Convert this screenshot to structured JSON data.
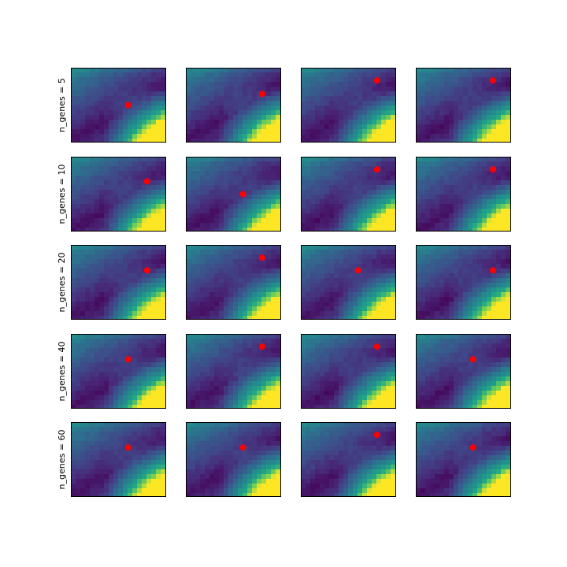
{
  "chart_data": {
    "type": "heatmap",
    "layout": {
      "rows": 5,
      "cols": 4
    },
    "row_labels": [
      "n_genes = 5",
      "n_genes = 10",
      "n_genes = 20",
      "n_genes = 40",
      "n_genes = 60"
    ],
    "axes": {
      "xticks": "none",
      "yticks": "none",
      "x_range": [
        0,
        1
      ],
      "y_range": [
        0,
        1
      ]
    },
    "colormap": "viridis",
    "marker_color": "#ff0000",
    "optimum_markers": [
      [
        {
          "x": 0.6,
          "y": 0.5
        },
        {
          "x": 0.8,
          "y": 0.65
        },
        {
          "x": 0.8,
          "y": 0.83
        },
        {
          "x": 0.81,
          "y": 0.83
        }
      ],
      [
        {
          "x": 0.8,
          "y": 0.67
        },
        {
          "x": 0.6,
          "y": 0.5
        },
        {
          "x": 0.8,
          "y": 0.83
        },
        {
          "x": 0.81,
          "y": 0.83
        }
      ],
      [
        {
          "x": 0.8,
          "y": 0.66
        },
        {
          "x": 0.8,
          "y": 0.83
        },
        {
          "x": 0.6,
          "y": 0.66
        },
        {
          "x": 0.81,
          "y": 0.66
        }
      ],
      [
        {
          "x": 0.6,
          "y": 0.66
        },
        {
          "x": 0.8,
          "y": 0.83
        },
        {
          "x": 0.8,
          "y": 0.83
        },
        {
          "x": 0.6,
          "y": 0.66
        }
      ],
      [
        {
          "x": 0.6,
          "y": 0.66
        },
        {
          "x": 0.6,
          "y": 0.66
        },
        {
          "x": 0.8,
          "y": 0.83
        },
        {
          "x": 0.6,
          "y": 0.66
        }
      ]
    ]
  }
}
